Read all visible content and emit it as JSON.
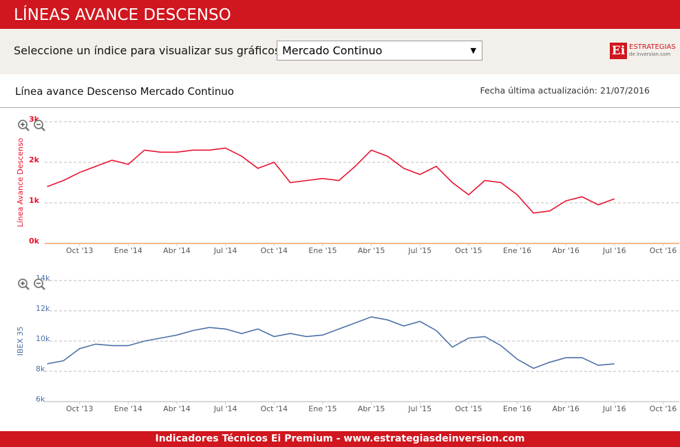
{
  "header": {
    "title": "LÍNEAS AVANCE DESCENSO"
  },
  "selector": {
    "label": "Seleccione un índice para visualizar sus gráficos:",
    "value": "Mercado Continuo"
  },
  "logo": {
    "mark": "Ei",
    "name": "ESTRATEGIAS",
    "domain": "de inversion.com"
  },
  "chart_panel": {
    "title": "Línea avance Descenso Mercado Continuo",
    "updated": "Fecha última actualización: 21/07/2016"
  },
  "chart_data": [
    {
      "type": "line",
      "x": [
        "2013-08",
        "2013-09",
        "2013-10",
        "2013-11",
        "2013-12",
        "2014-01",
        "2014-02",
        "2014-03",
        "2014-04",
        "2014-05",
        "2014-06",
        "2014-07",
        "2014-08",
        "2014-09",
        "2014-10",
        "2014-11",
        "2014-12",
        "2015-01",
        "2015-02",
        "2015-03",
        "2015-04",
        "2015-05",
        "2015-06",
        "2015-07",
        "2015-08",
        "2015-09",
        "2015-10",
        "2015-11",
        "2015-12",
        "2016-01",
        "2016-02",
        "2016-03",
        "2016-04",
        "2016-05",
        "2016-06",
        "2016-07"
      ],
      "series": [
        {
          "name": "Línea Avance Descenso",
          "color": "#e8112d",
          "values": [
            1400,
            1550,
            1750,
            1900,
            2050,
            1950,
            2300,
            2250,
            2250,
            2300,
            2300,
            2350,
            2150,
            1850,
            2000,
            1500,
            1550,
            1600,
            1550,
            1900,
            2300,
            2150,
            1850,
            1700,
            1900,
            1500,
            1200,
            1550,
            1500,
            1200,
            750,
            800,
            1050,
            1150,
            950,
            1100
          ]
        }
      ],
      "xlim": [
        "2013-07",
        "2016-11"
      ],
      "xticks": [
        {
          "value": "2013-10",
          "label": "Oct '13"
        },
        {
          "value": "2014-01",
          "label": "Ene '14"
        },
        {
          "value": "2014-04",
          "label": "Abr '14"
        },
        {
          "value": "2014-07",
          "label": "Jul '14"
        },
        {
          "value": "2014-10",
          "label": "Oct '14"
        },
        {
          "value": "2015-01",
          "label": "Ene '15"
        },
        {
          "value": "2015-04",
          "label": "Abr '15"
        },
        {
          "value": "2015-07",
          "label": "Jul '15"
        },
        {
          "value": "2015-10",
          "label": "Oct '15"
        },
        {
          "value": "2016-01",
          "label": "Ene '16"
        },
        {
          "value": "2016-04",
          "label": "Abr '16"
        },
        {
          "value": "2016-07",
          "label": "Jul '16"
        },
        {
          "value": "2016-10",
          "label": "Oct '16"
        }
      ],
      "ylim": [
        0,
        3000
      ],
      "yticks": [
        {
          "value": 0,
          "label": "0k"
        },
        {
          "value": 1000,
          "label": "1k"
        },
        {
          "value": 2000,
          "label": "2k"
        },
        {
          "value": 3000,
          "label": "3k"
        }
      ],
      "grid": true
    },
    {
      "type": "line",
      "x": [
        "2013-08",
        "2013-09",
        "2013-10",
        "2013-11",
        "2013-12",
        "2014-01",
        "2014-02",
        "2014-03",
        "2014-04",
        "2014-05",
        "2014-06",
        "2014-07",
        "2014-08",
        "2014-09",
        "2014-10",
        "2014-11",
        "2014-12",
        "2015-01",
        "2015-02",
        "2015-03",
        "2015-04",
        "2015-05",
        "2015-06",
        "2015-07",
        "2015-08",
        "2015-09",
        "2015-10",
        "2015-11",
        "2015-12",
        "2016-01",
        "2016-02",
        "2016-03",
        "2016-04",
        "2016-05",
        "2016-06",
        "2016-07"
      ],
      "series": [
        {
          "name": "IBEX 35",
          "color": "#4a6fa5",
          "values": [
            8500,
            8700,
            9500,
            9800,
            9700,
            9700,
            10000,
            10200,
            10400,
            10700,
            10900,
            10800,
            10500,
            10800,
            10300,
            10500,
            10300,
            10400,
            10800,
            11200,
            11600,
            11400,
            11000,
            11300,
            10700,
            9600,
            10200,
            10300,
            9700,
            8800,
            8200,
            8600,
            8900,
            8900,
            8400,
            8500
          ]
        }
      ],
      "xlim": [
        "2013-07",
        "2016-11"
      ],
      "xticks": [
        {
          "value": "2013-10",
          "label": "Oct '13"
        },
        {
          "value": "2014-01",
          "label": "Ene '14"
        },
        {
          "value": "2014-04",
          "label": "Abr '14"
        },
        {
          "value": "2014-07",
          "label": "Jul '14"
        },
        {
          "value": "2014-10",
          "label": "Oct '14"
        },
        {
          "value": "2015-01",
          "label": "Ene '15"
        },
        {
          "value": "2015-04",
          "label": "Abr '15"
        },
        {
          "value": "2015-07",
          "label": "Jul '15"
        },
        {
          "value": "2015-10",
          "label": "Oct '15"
        },
        {
          "value": "2016-01",
          "label": "Ene '16"
        },
        {
          "value": "2016-04",
          "label": "Abr '16"
        },
        {
          "value": "2016-07",
          "label": "Jul '16"
        },
        {
          "value": "2016-10",
          "label": "Oct '16"
        }
      ],
      "ylim": [
        6000,
        14000
      ],
      "yticks": [
        {
          "value": 6000,
          "label": "6k"
        },
        {
          "value": 8000,
          "label": "8k"
        },
        {
          "value": 10000,
          "label": "10k"
        },
        {
          "value": 12000,
          "label": "12k"
        },
        {
          "value": 14000,
          "label": "14k"
        }
      ],
      "grid": true
    }
  ],
  "footer": {
    "text": "Indicadores Técnicos Ei Premium - www.estrategiasdeinversion.com"
  }
}
